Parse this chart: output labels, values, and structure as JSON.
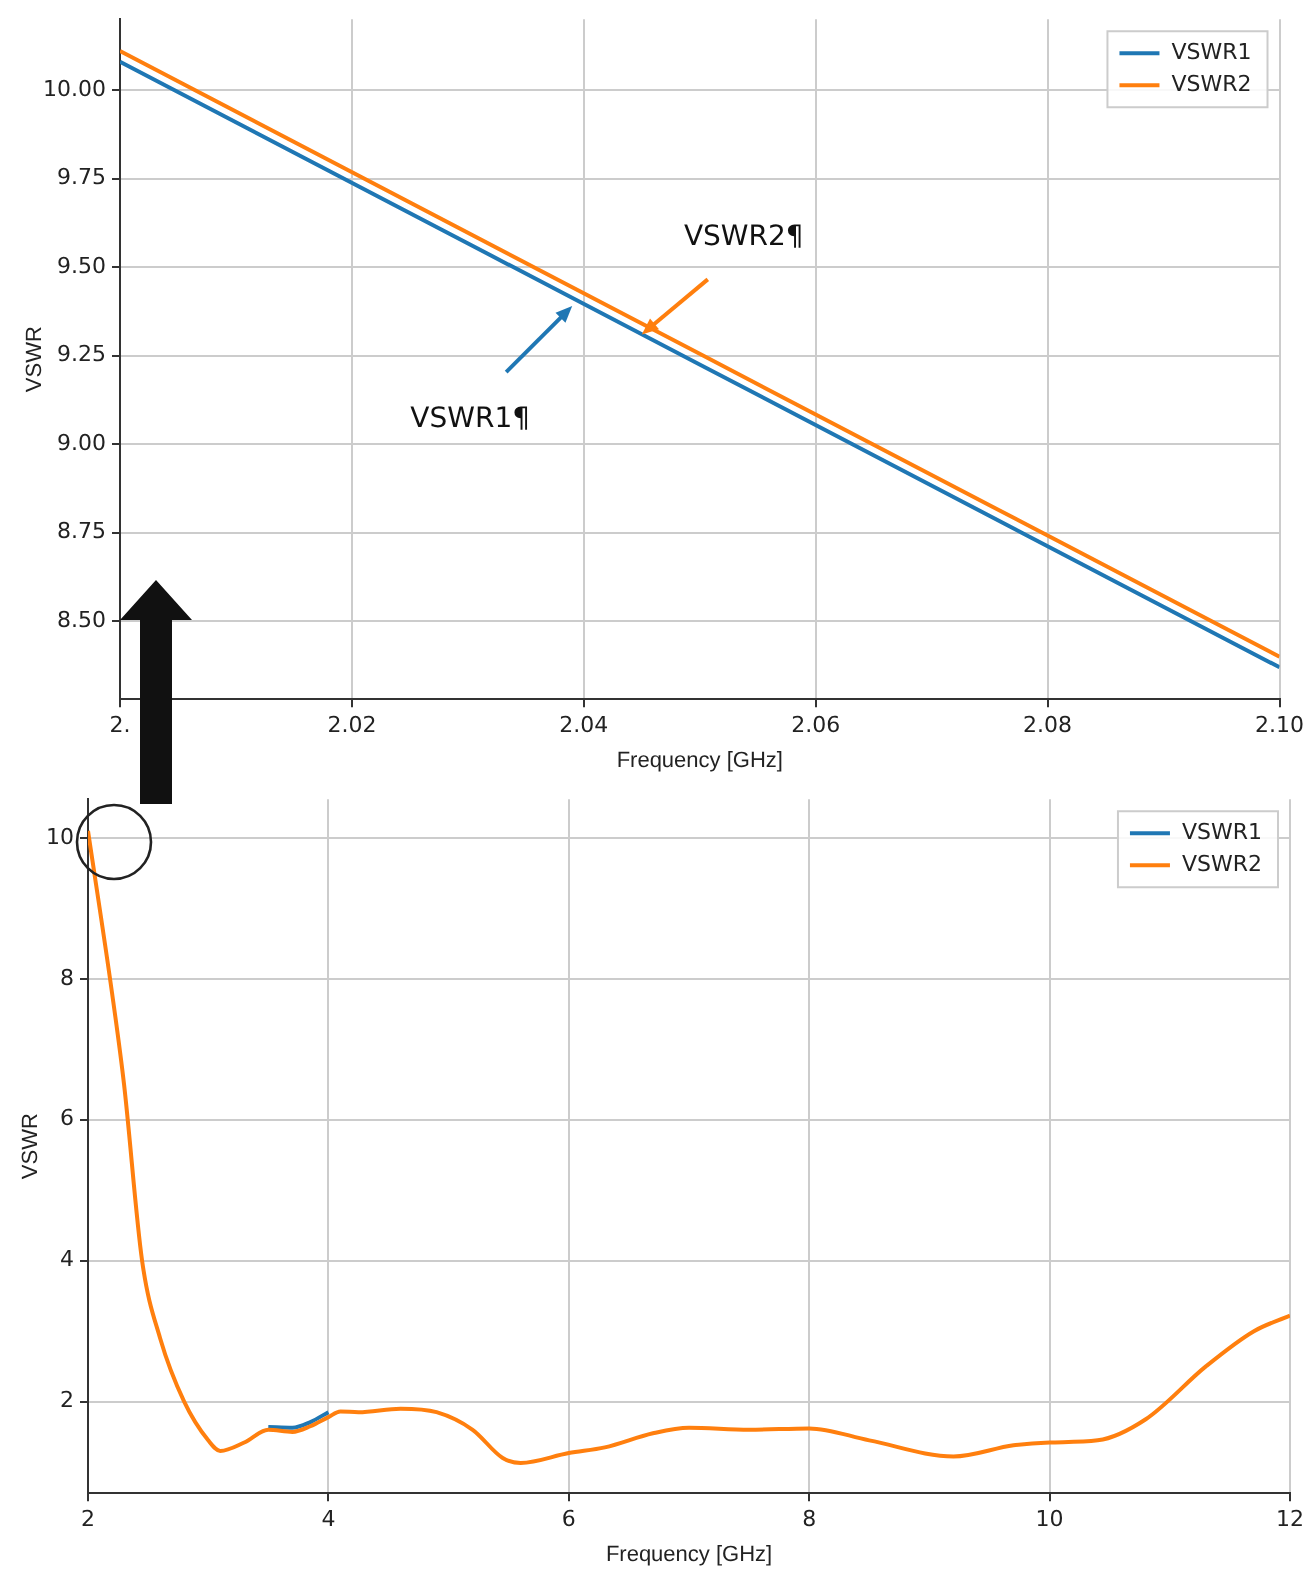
{
  "chart_data": [
    {
      "type": "line",
      "xlabel": "Frequency [GHz]",
      "ylabel": "VSWR",
      "xlim": [
        2.0,
        2.1
      ],
      "ylim": [
        8.28,
        10.2
      ],
      "xticks": [
        {
          "value": 2.0,
          "label": "2."
        },
        {
          "value": 2.02,
          "label": "2.02"
        },
        {
          "value": 2.04,
          "label": "2.04"
        },
        {
          "value": 2.06,
          "label": "2.06"
        },
        {
          "value": 2.08,
          "label": "2.08"
        },
        {
          "value": 2.1,
          "label": "2.10"
        }
      ],
      "yticks": [
        {
          "value": 8.5,
          "label": "8.50"
        },
        {
          "value": 8.75,
          "label": "8.75"
        },
        {
          "value": 9.0,
          "label": "9.00"
        },
        {
          "value": 9.25,
          "label": "9.25"
        },
        {
          "value": 9.5,
          "label": "9.50"
        },
        {
          "value": 9.75,
          "label": "9.75"
        },
        {
          "value": 10.0,
          "label": "10.00"
        }
      ],
      "grid": true,
      "legend": "top right",
      "x": [
        2.0,
        2.1
      ],
      "series": [
        {
          "name": "VSWR1",
          "color": "#1f77b4",
          "values": [
            10.08,
            8.37
          ]
        },
        {
          "name": "VSWR2",
          "color": "#ff7f0e",
          "values": [
            10.11,
            8.4
          ]
        }
      ],
      "annotations": [
        {
          "text": "VSWR1¶",
          "x": 2.039,
          "y": 9.39
        },
        {
          "text": "VSWR2¶",
          "x": 2.045,
          "y": 9.31
        }
      ]
    },
    {
      "type": "line",
      "xlabel": "Frequency [GHz]",
      "ylabel": "VSWR",
      "xlim": [
        2,
        12
      ],
      "ylim": [
        0.7,
        10.55
      ],
      "xticks": [
        2,
        4,
        6,
        8,
        10,
        12
      ],
      "yticks": [
        2,
        4,
        6,
        8,
        10
      ],
      "grid": true,
      "legend": "top right",
      "x": [
        2.0,
        2.2,
        2.3,
        2.45,
        2.6,
        2.8,
        3.0,
        3.1,
        3.3,
        3.5,
        3.7,
        3.85,
        4.0,
        4.1,
        4.25,
        4.6,
        4.9,
        5.2,
        5.45,
        5.6,
        6.0,
        6.3,
        6.7,
        7.0,
        7.5,
        8.0,
        8.5,
        9.2,
        9.7,
        10.0,
        10.4,
        10.8,
        11.3,
        11.7,
        12.0
      ],
      "series": [
        {
          "name": "VSWR1",
          "color": "#1f77b4",
          "values": [
            null,
            null,
            null,
            null,
            null,
            null,
            null,
            null,
            null,
            1.64,
            1.63,
            1.71,
            1.85,
            null,
            null,
            null,
            null,
            null,
            null,
            null,
            null,
            null,
            null,
            null,
            null,
            null,
            null,
            null,
            null,
            null,
            null,
            null,
            null,
            null,
            null
          ]
        },
        {
          "name": "VSWR2",
          "color": "#ff7f0e",
          "values": [
            10.1,
            7.8,
            6.5,
            4.0,
            2.9,
            2.0,
            1.45,
            1.3,
            1.42,
            1.6,
            1.57,
            1.65,
            1.78,
            1.86,
            1.85,
            1.9,
            1.85,
            1.6,
            1.2,
            1.13,
            1.27,
            1.35,
            1.55,
            1.63,
            1.6,
            1.62,
            1.45,
            1.22,
            1.38,
            1.42,
            1.45,
            1.75,
            2.5,
            3.0,
            3.22
          ]
        }
      ]
    }
  ]
}
